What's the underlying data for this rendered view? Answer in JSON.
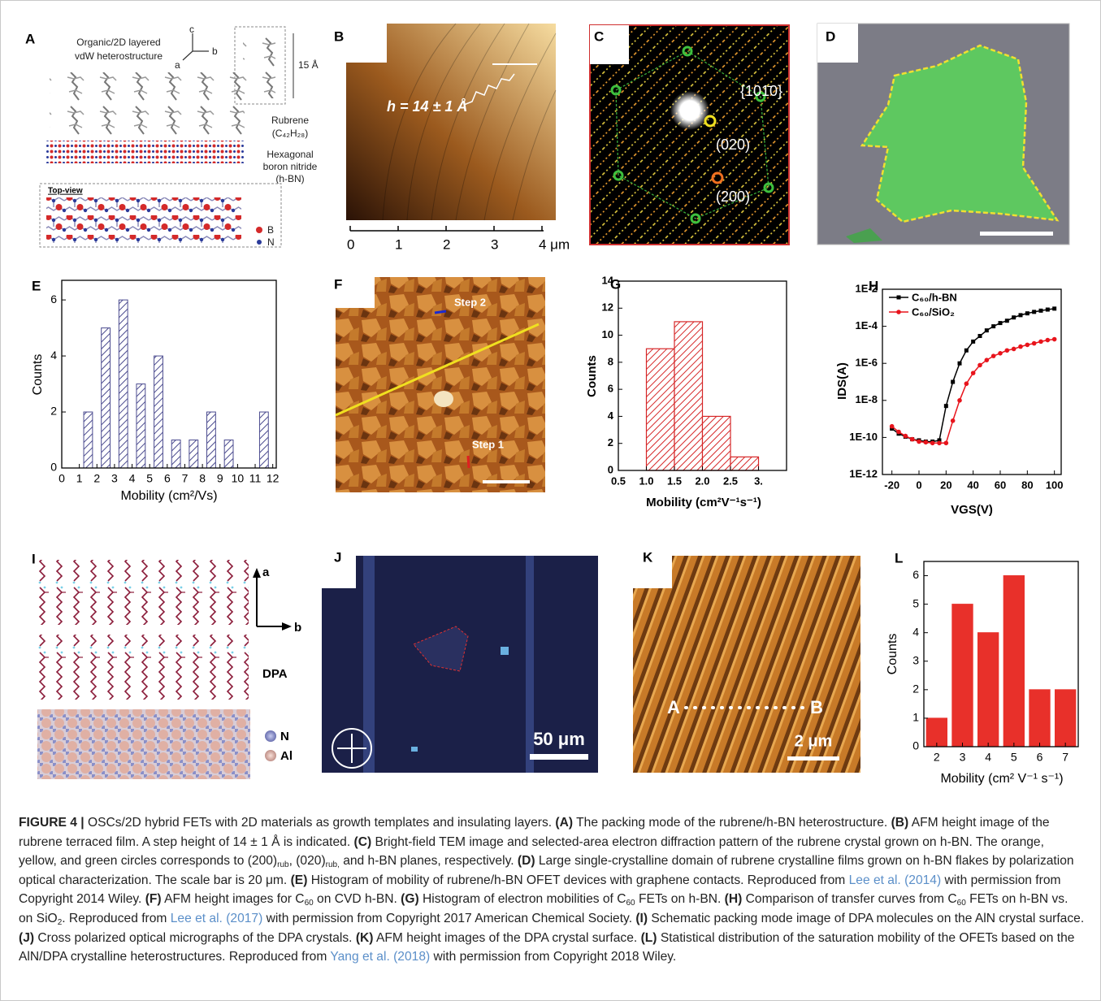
{
  "panels": [
    {
      "label": "A",
      "texts": [
        "Organic/2D layered",
        "vdW heterostructure",
        "c",
        "b",
        "a",
        "15 Å",
        "Rubrene",
        "(C₄₂H₂₈)",
        "Hexagonal",
        "boron nitride",
        "(h-BN)",
        "Top-view",
        "B",
        "N"
      ]
    },
    {
      "label": "B",
      "texts": [
        "h = 14 ± 1 Å"
      ],
      "scale": [
        0,
        1,
        2,
        3,
        {
          "value": 4,
          "label": "4 μm"
        }
      ]
    },
    {
      "label": "C",
      "texts": [
        "{101̄0}",
        "(020)",
        "(200)"
      ]
    },
    {
      "label": "D"
    },
    {
      "label": "F",
      "texts": [
        "Step 2",
        "Step 1"
      ]
    },
    {
      "label": "I",
      "texts": [
        "a",
        "b",
        "DPA",
        "N",
        "Al"
      ]
    },
    {
      "label": "J",
      "texts": [
        "50 μm"
      ]
    },
    {
      "label": "K",
      "texts": [
        "A",
        "B",
        "2 μm"
      ]
    }
  ],
  "chart_data": [
    {
      "label": "E",
      "type": "bar",
      "x": [
        1.5,
        2.5,
        3.5,
        4.5,
        5.5,
        6.5,
        7.5,
        8.5,
        9.5,
        11.5
      ],
      "values": [
        2,
        5,
        6,
        3,
        4,
        1,
        1,
        2,
        1,
        2
      ],
      "color": "#4b4b8f",
      "hatch": true,
      "xlim": [
        0,
        12.2
      ],
      "xticks": [
        0,
        1,
        2,
        3,
        4,
        5,
        6,
        7,
        8,
        9,
        10,
        11,
        12
      ],
      "ylim": [
        0,
        6.7
      ],
      "yticks": [
        0,
        2,
        4,
        6
      ],
      "x_label": "Mobility (cm²/Vs)",
      "y_label": "Counts"
    },
    {
      "label": "G",
      "type": "histogram",
      "bins": [
        1.0,
        1.5,
        2.0,
        2.5,
        3.0
      ],
      "values": [
        9,
        11,
        4,
        1
      ],
      "color": "#d62728",
      "hatch": true,
      "xlim": [
        0.5,
        3.5
      ],
      "xticks": [
        0.5,
        {
          "value": 1,
          "label": "1.0"
        },
        1.5,
        {
          "value": 2,
          "label": "2.0"
        },
        2.5,
        {
          "value": 3,
          "label": "3."
        }
      ],
      "ylim": [
        0,
        14
      ],
      "yticks": [
        0,
        2,
        4,
        6,
        8,
        10,
        12,
        14
      ],
      "x_label": "Mobility (cm²V⁻¹s⁻¹)",
      "y_label": "Counts"
    },
    {
      "label": "H",
      "type": "line",
      "log_y": true,
      "legend": "upper left",
      "x": [
        -20,
        -15,
        -10,
        -5,
        0,
        5,
        10,
        15,
        20,
        25,
        30,
        35,
        40,
        45,
        50,
        55,
        60,
        65,
        70,
        75,
        80,
        85,
        90,
        95,
        100
      ],
      "series": [
        {
          "name": "C₆₀/h-BN",
          "color": "#000000",
          "values": [
            3e-10,
            1.6e-10,
            1.1e-10,
            8e-11,
            7e-11,
            6e-11,
            6e-11,
            7e-11,
            5e-09,
            1e-07,
            1e-06,
            5e-06,
            1.5e-05,
            3e-05,
            6e-05,
            0.0001,
            0.00015,
            0.0002,
            0.0003,
            0.0004,
            0.0005,
            0.0006,
            0.0007,
            0.0008,
            0.0009
          ]
        },
        {
          "name": "C₆₀/SiO₂",
          "color": "#e8141c",
          "values": [
            4e-10,
            2e-10,
            1.2e-10,
            8e-11,
            6e-11,
            5.5e-11,
            5e-11,
            5e-11,
            5e-11,
            8e-10,
            1e-08,
            8e-08,
            3e-07,
            8e-07,
            1.5e-06,
            2.5e-06,
            3.5e-06,
            5e-06,
            6e-06,
            8e-06,
            1e-05,
            1.2e-05,
            1.5e-05,
            1.8e-05,
            2e-05
          ]
        }
      ],
      "xlim": [
        -27,
        105
      ],
      "xticks": [
        -20,
        0,
        20,
        40,
        60,
        80,
        100
      ],
      "ylim": [
        1e-12,
        0.01
      ],
      "yticks": [
        {
          "value": 0.01,
          "label": "1E-2"
        },
        {
          "value": 0.0001,
          "label": "1E-4"
        },
        {
          "value": 1e-06,
          "label": "1E-6"
        },
        {
          "value": 1e-08,
          "label": "1E-8"
        },
        {
          "value": 1e-10,
          "label": "1E-10"
        },
        {
          "value": 1e-12,
          "label": "1E-12"
        }
      ],
      "x_label": "VGS(V)",
      "y_label": "IDS(A)"
    },
    {
      "label": "L",
      "type": "bar",
      "x": [
        2,
        3,
        4,
        5,
        6,
        7
      ],
      "values": [
        1,
        5,
        4,
        6,
        2,
        2
      ],
      "color": "#e8302a",
      "hatch": false,
      "xlim": [
        1.5,
        7.5
      ],
      "xticks": [
        2,
        3,
        4,
        5,
        6,
        7
      ],
      "ylim": [
        0,
        6.5
      ],
      "yticks": [
        0,
        1,
        2,
        3,
        4,
        5,
        6
      ],
      "x_label": "Mobility (cm² V⁻¹ s⁻¹)",
      "y_label": "Counts"
    }
  ],
  "caption": {
    "segments": [
      {
        "text": "FIGURE 4 | ",
        "style": "bold"
      },
      {
        "text": "OSCs/2D hybrid FETs with 2D materials as growth templates and insulating layers. "
      },
      {
        "text": "(A)",
        "style": "bold"
      },
      {
        "text": " The packing mode of the rubrene/h-BN heterostructure. "
      },
      {
        "text": "(B)",
        "style": "bold"
      },
      {
        "text": " AFM height image of the rubrene terraced film. A step height of 14 ± 1 Å is indicated. "
      },
      {
        "text": "(C)",
        "style": "bold"
      },
      {
        "text": " Bright-field TEM image and selected-area electron diffraction pattern of the rubrene crystal grown on h-BN. The orange, yellow, and green circles corresponds to (200)"
      },
      {
        "text": "rub",
        "style": "sub"
      },
      {
        "text": ", (020)"
      },
      {
        "text": "rub,",
        "style": "sub"
      },
      {
        "text": " and h-BN planes, respectively. "
      },
      {
        "text": "(D)",
        "style": "bold"
      },
      {
        "text": " Large single-crystalline domain of rubrene crystalline films grown on h-BN flakes by polarization optical characterization. The scale bar is 20 μm. "
      },
      {
        "text": "(E)",
        "style": "bold"
      },
      {
        "text": " Histogram of mobility of rubrene/h-BN OFET devices with graphene contacts. Reproduced from "
      },
      {
        "text": "Lee et al. (2014)",
        "style": "link"
      },
      {
        "text": " with permission from Copyright 2014 Wiley. "
      },
      {
        "text": "(F)",
        "style": "bold"
      },
      {
        "text": " AFM height images for C"
      },
      {
        "text": "60",
        "style": "sub"
      },
      {
        "text": " on CVD h-BN. "
      },
      {
        "text": "(G)",
        "style": "bold"
      },
      {
        "text": " Histogram of electron mobilities of C"
      },
      {
        "text": "60",
        "style": "sub"
      },
      {
        "text": " FETs on h-BN. "
      },
      {
        "text": "(H)",
        "style": "bold"
      },
      {
        "text": " Comparison of transfer curves from C"
      },
      {
        "text": "60",
        "style": "sub"
      },
      {
        "text": " FETs on h-BN vs. on SiO"
      },
      {
        "text": "2",
        "style": "sub"
      },
      {
        "text": ". Reproduced from "
      },
      {
        "text": "Lee et al. (2017)",
        "style": "link"
      },
      {
        "text": " with permission from Copyright 2017 American Chemical Society. "
      },
      {
        "text": "(I)",
        "style": "bold"
      },
      {
        "text": " Schematic packing mode image of DPA molecules on the AlN crystal surface. "
      },
      {
        "text": "(J)",
        "style": "bold"
      },
      {
        "text": " Cross polarized optical micrographs of the DPA crystals. "
      },
      {
        "text": "(K)",
        "style": "bold"
      },
      {
        "text": " AFM height images of the DPA crystal surface. "
      },
      {
        "text": "(L)",
        "style": "bold"
      },
      {
        "text": " Statistical distribution of the saturation mobility of the OFETs based on the AlN/DPA crystalline heterostructures. Reproduced from "
      },
      {
        "text": "Yang et al. (2018)",
        "style": "link"
      },
      {
        "text": " with permission from Copyright 2018 Wiley."
      }
    ]
  }
}
